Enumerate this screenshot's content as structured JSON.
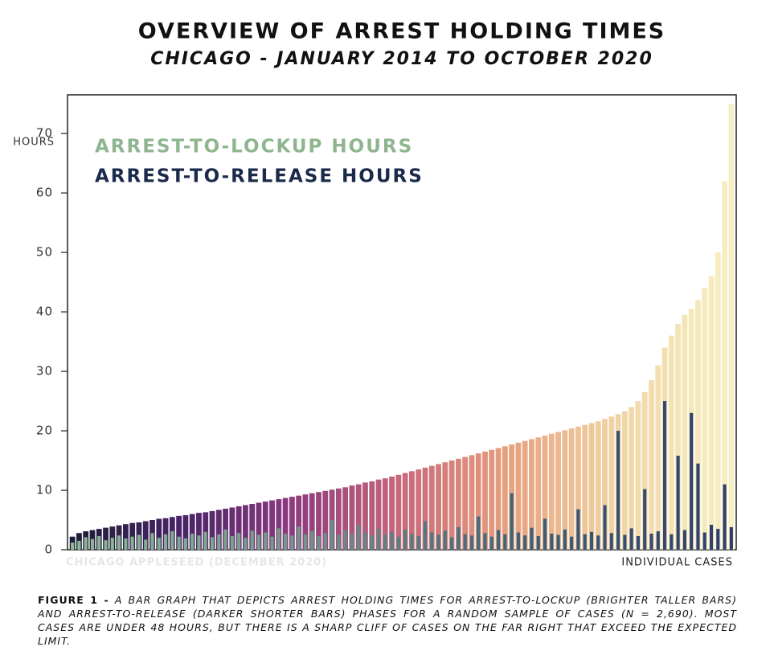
{
  "chart_data": {
    "type": "bar",
    "title": "OVERVIEW OF ARREST HOLDING TIMES",
    "subtitle": "CHICAGO - JANUARY 2014 TO OCTOBER 2020",
    "y_label": "HOURS",
    "x_label": "INDIVIDUAL CASES",
    "source": "CHICAGO APPLESEED (DECEMBER 2020)",
    "caption_label": "FIGURE 1 -",
    "caption": "A BAR GRAPH THAT DEPICTS ARREST HOLDING TIMES FOR ARREST-TO-LOCKUP (BRIGHTER TALLER BARS) AND ARREST-TO-RELEASE (DARKER SHORTER BARS) PHASES FOR A RANDOM SAMPLE OF CASES (N = 2,690). MOST CASES ARE UNDER 48 HOURS, BUT THERE IS A SHARP CLIFF OF CASES ON THE FAR RIGHT THAT EXCEED THE EXPECTED LIMIT.",
    "ylim": [
      0,
      76.5
    ],
    "yticks": [
      0,
      10,
      20,
      30,
      40,
      50,
      60,
      70
    ],
    "grid": false,
    "legend_position": "upper left",
    "categories": [
      null,
      null,
      null,
      null,
      null,
      null,
      null,
      null,
      null,
      null,
      null,
      null,
      null,
      null,
      null,
      null,
      null,
      null,
      null,
      null,
      null,
      null,
      null,
      null,
      null,
      null,
      null,
      null,
      null,
      null,
      null,
      null,
      null,
      null,
      null,
      null,
      null,
      null,
      null,
      null,
      null,
      null,
      null,
      null,
      null,
      null,
      null,
      null,
      null,
      null,
      null,
      null,
      null,
      null,
      null,
      null,
      null,
      null,
      null,
      null,
      null,
      null,
      null,
      null,
      null,
      null,
      null,
      null,
      null,
      null,
      null,
      null,
      null,
      null,
      null,
      null,
      null,
      null,
      null,
      null,
      null,
      null,
      null,
      null,
      null,
      null,
      null,
      null,
      null,
      null,
      null,
      null,
      null,
      null,
      null,
      null,
      null,
      null,
      null,
      null
    ],
    "series": [
      {
        "name": "ARREST-TO-LOCKUP HOURS",
        "color": "#8db58e",
        "gradient": [
          "#1c1d38",
          "#4a2468",
          "#8d3a7e",
          "#c9687a",
          "#e7a27e",
          "#f1d6a6",
          "#f6f0c4"
        ],
        "values": [
          2.2,
          2.8,
          3.1,
          3.3,
          3.5,
          3.7,
          3.9,
          4.1,
          4.3,
          4.5,
          4.6,
          4.8,
          5.0,
          5.2,
          5.3,
          5.5,
          5.7,
          5.8,
          6.0,
          6.2,
          6.3,
          6.5,
          6.7,
          6.9,
          7.1,
          7.3,
          7.5,
          7.7,
          7.9,
          8.1,
          8.3,
          8.5,
          8.7,
          8.9,
          9.1,
          9.3,
          9.5,
          9.7,
          9.9,
          10.1,
          10.3,
          10.5,
          10.8,
          11.0,
          11.3,
          11.5,
          11.8,
          12.0,
          12.3,
          12.6,
          12.9,
          13.2,
          13.5,
          13.8,
          14.1,
          14.4,
          14.7,
          15.0,
          15.3,
          15.6,
          15.9,
          16.2,
          16.5,
          16.8,
          17.1,
          17.4,
          17.7,
          18.0,
          18.3,
          18.6,
          18.9,
          19.2,
          19.5,
          19.8,
          20.1,
          20.4,
          20.7,
          21.0,
          21.3,
          21.6,
          22.0,
          22.4,
          22.8,
          23.3,
          24.0,
          25.0,
          26.5,
          28.5,
          31.0,
          34.0,
          36.0,
          38.0,
          39.5,
          40.5,
          42.0,
          44.0,
          46.0,
          50.0,
          62.0,
          75.0
        ]
      },
      {
        "name": "ARREST-TO-RELEASE HOURS",
        "color": "#1b2a4a",
        "gradient": [
          "#8dba93",
          "#6f9a8a",
          "#3f6478",
          "#2f3d6b"
        ],
        "values": [
          1.2,
          1.5,
          2.1,
          1.8,
          2.3,
          1.6,
          2.0,
          2.4,
          1.9,
          2.2,
          2.5,
          1.7,
          2.8,
          2.0,
          2.6,
          3.1,
          2.2,
          1.9,
          2.7,
          2.4,
          3.0,
          2.1,
          2.6,
          3.4,
          2.3,
          2.8,
          2.0,
          3.2,
          2.5,
          2.9,
          2.2,
          3.6,
          2.7,
          2.4,
          3.9,
          2.6,
          3.1,
          2.3,
          2.8,
          5.0,
          2.5,
          3.3,
          2.7,
          4.2,
          2.9,
          2.4,
          3.5,
          2.6,
          3.0,
          2.2,
          3.4,
          2.7,
          2.3,
          4.8,
          2.9,
          2.5,
          3.2,
          2.1,
          3.8,
          2.6,
          2.4,
          5.6,
          2.8,
          2.2,
          3.3,
          2.6,
          9.5,
          2.9,
          2.4,
          3.7,
          2.3,
          5.2,
          2.7,
          2.5,
          3.4,
          2.2,
          6.8,
          2.6,
          3.0,
          2.4,
          7.5,
          2.8,
          20.0,
          2.5,
          3.6,
          2.3,
          10.2,
          2.7,
          3.1,
          25.0,
          2.6,
          15.8,
          3.3,
          23.0,
          14.5,
          2.9,
          4.2,
          3.5,
          11.0,
          3.8
        ]
      }
    ]
  }
}
